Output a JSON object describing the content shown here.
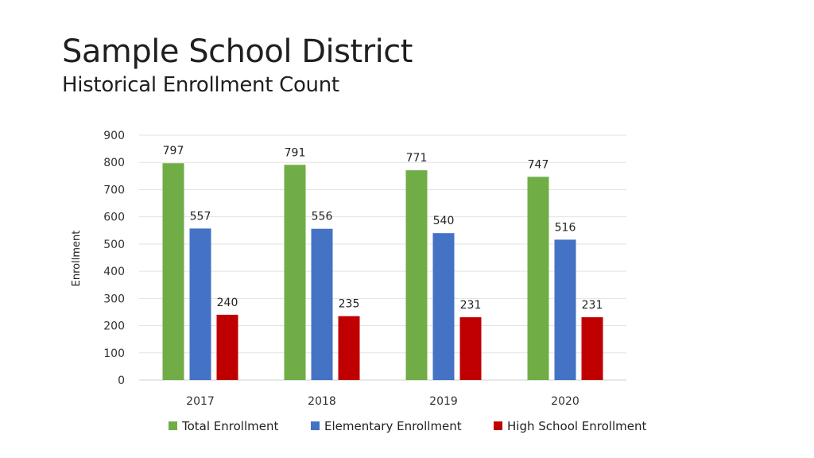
{
  "header": {
    "title": "Sample School District",
    "subtitle": "Historical Enrollment Count"
  },
  "chart_data": {
    "type": "bar",
    "categories": [
      "2017",
      "2018",
      "2019",
      "2020"
    ],
    "series": [
      {
        "name": "Total Enrollment",
        "values": [
          797,
          791,
          771,
          747
        ],
        "color": "#70ad47"
      },
      {
        "name": "Elementary Enrollment",
        "values": [
          557,
          556,
          540,
          516
        ],
        "color": "#4472c4"
      },
      {
        "name": "High School Enrollment",
        "values": [
          240,
          235,
          231,
          231
        ],
        "color": "#c00000"
      }
    ],
    "ylabel": "Enrollment",
    "xlabel": "",
    "ylim": [
      0,
      900
    ],
    "yticks": [
      0,
      100,
      200,
      300,
      400,
      500,
      600,
      700,
      800,
      900
    ],
    "grid": true,
    "legend_position": "bottom",
    "data_labels": true
  }
}
